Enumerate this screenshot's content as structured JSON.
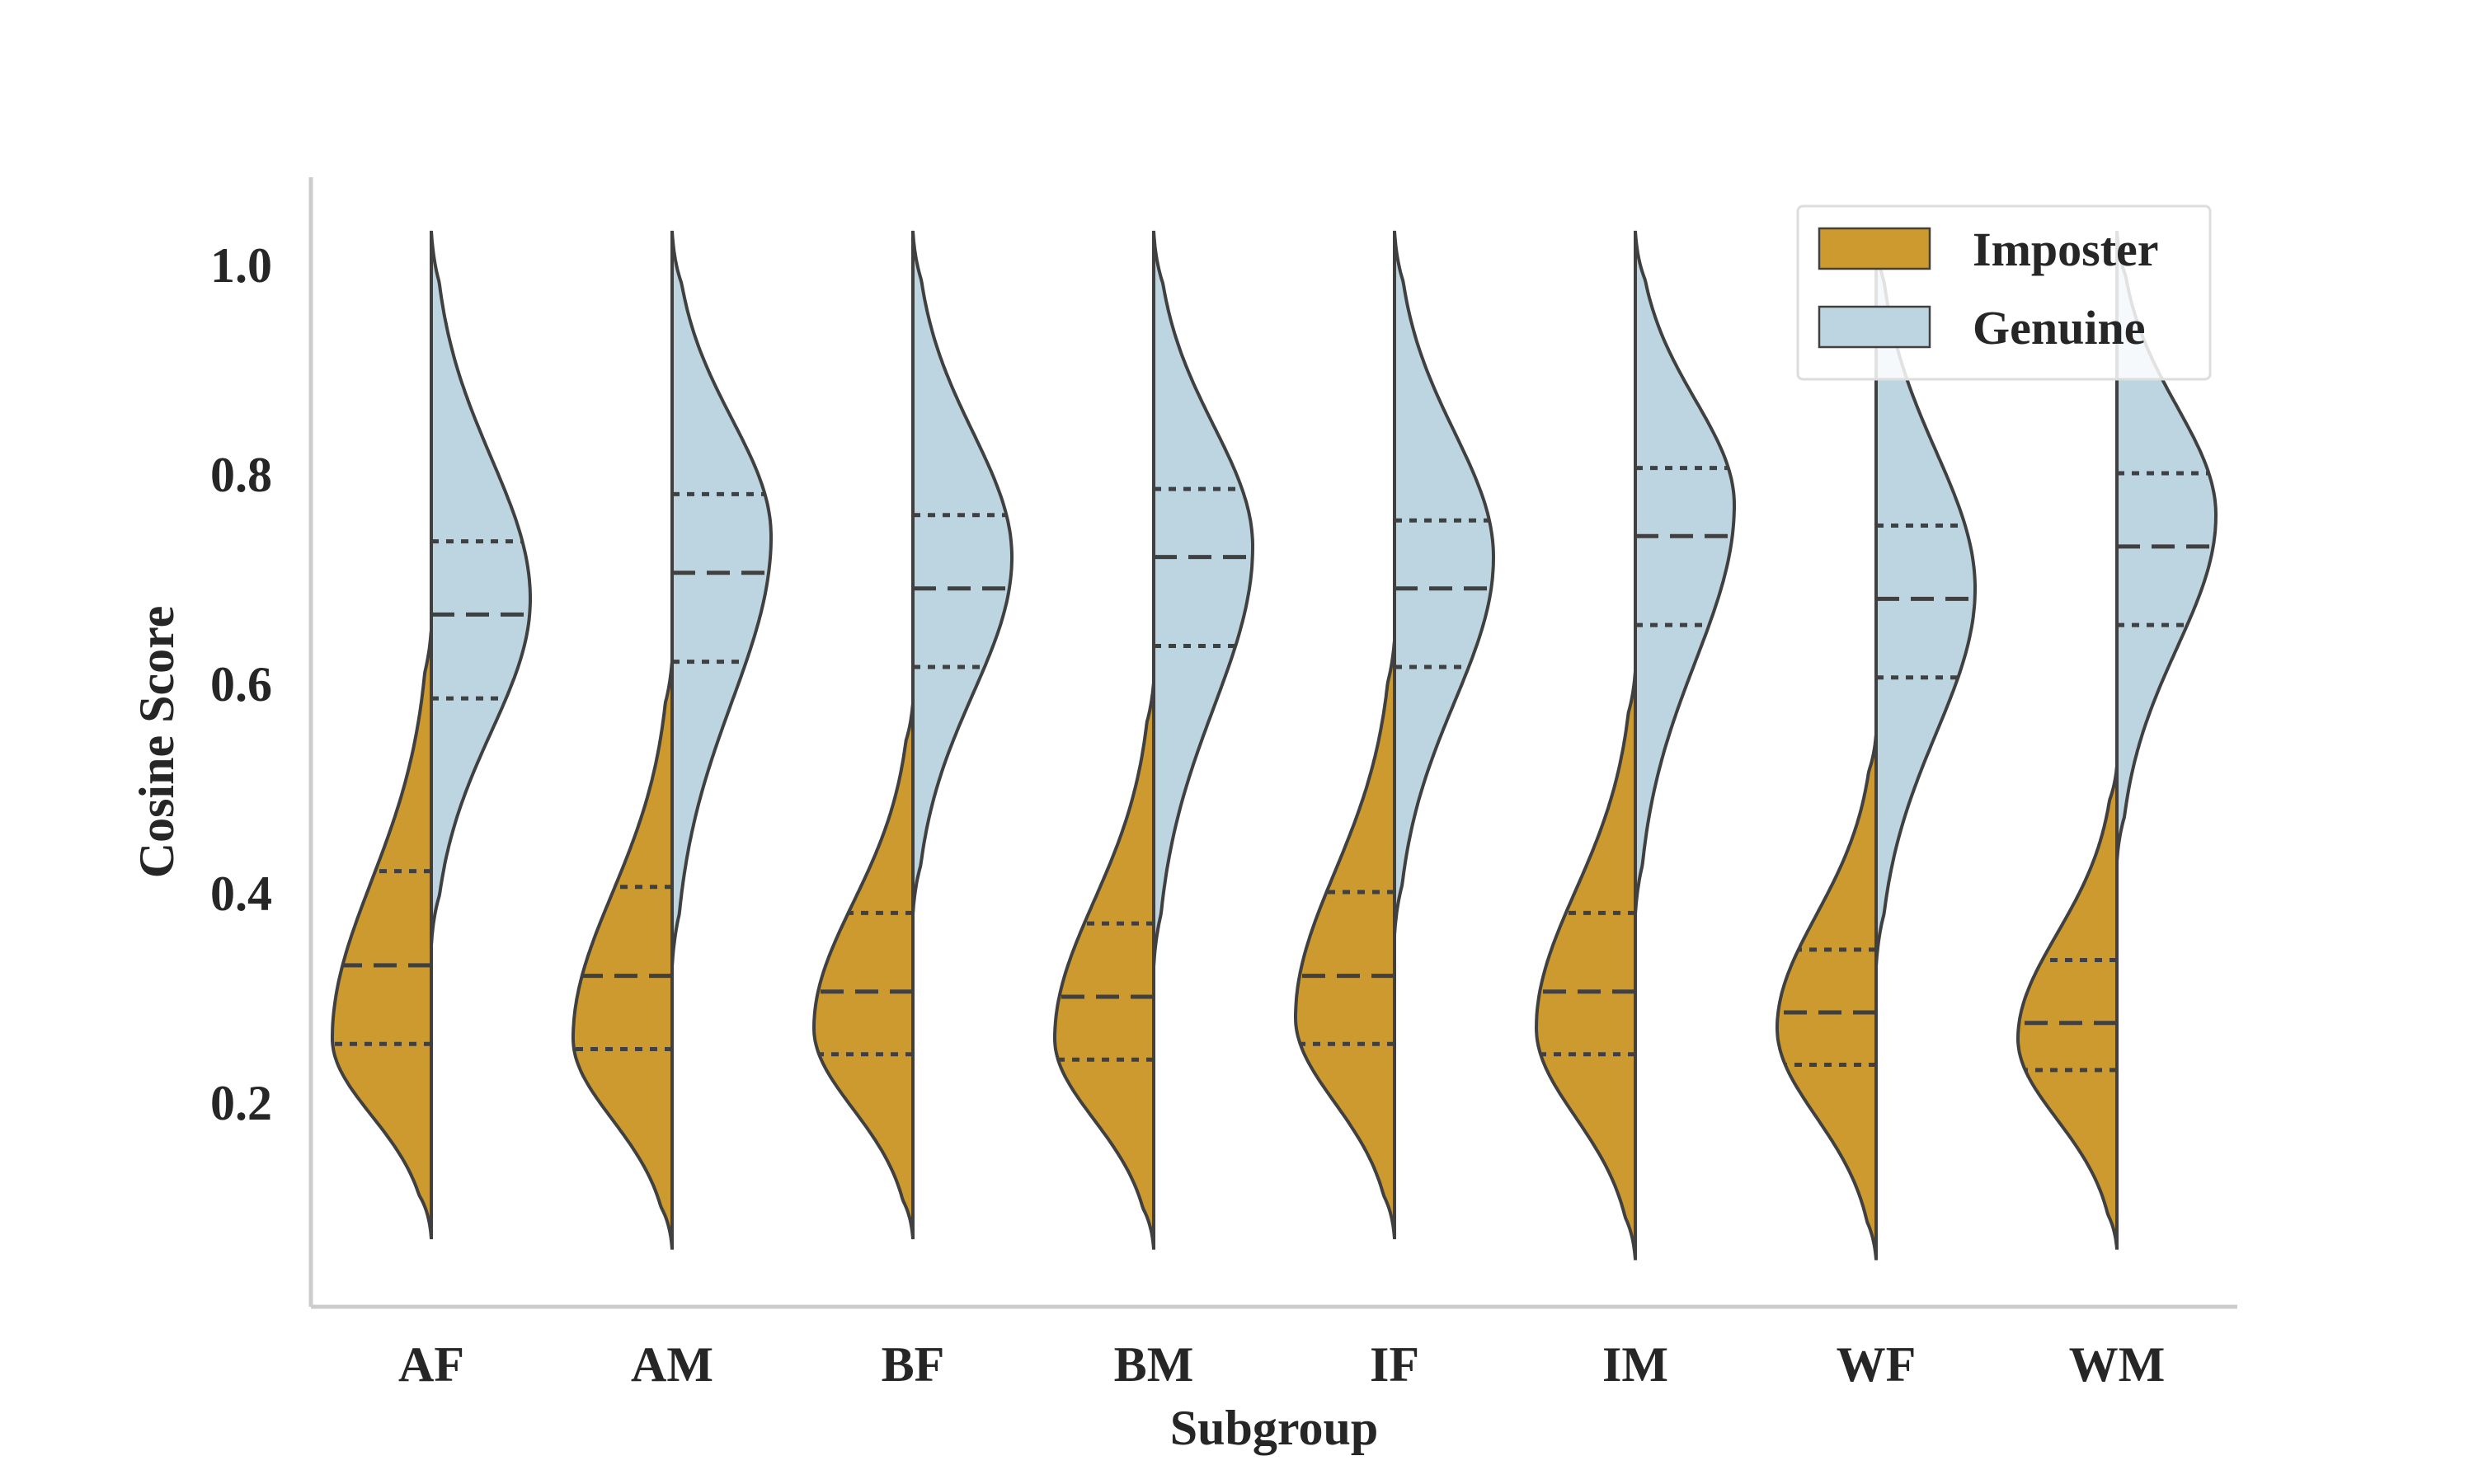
{
  "chart_data": {
    "type": "violin",
    "split": true,
    "xlabel": "Subgroup",
    "ylabel": "Cosine Score",
    "ylim": [
      0.0,
      1.1
    ],
    "yticks": [
      "0.2",
      "0.4",
      "0.6",
      "0.8",
      "1.0"
    ],
    "yticks_values": [
      0.2,
      0.4,
      0.6,
      0.8,
      1.0
    ],
    "categories": [
      "AF",
      "AM",
      "BF",
      "BM",
      "IF",
      "IM",
      "WF",
      "WM"
    ],
    "inner": "quartile",
    "grid": false,
    "legend_position": "top-right",
    "series": [
      {
        "name": "Imposter",
        "side": "left",
        "color": "#CC9A2F",
        "min": [
          0.07,
          0.06,
          0.07,
          0.06,
          0.07,
          0.05,
          0.05,
          0.06
        ],
        "max": [
          0.65,
          0.62,
          0.58,
          0.6,
          0.64,
          0.61,
          0.55,
          0.52
        ],
        "q1": [
          0.255,
          0.25,
          0.245,
          0.24,
          0.255,
          0.245,
          0.235,
          0.23
        ],
        "median": [
          0.33,
          0.32,
          0.305,
          0.3,
          0.32,
          0.305,
          0.285,
          0.275
        ],
        "q3": [
          0.42,
          0.405,
          0.38,
          0.37,
          0.4,
          0.38,
          0.345,
          0.335
        ],
        "mode": [
          0.26,
          0.26,
          0.27,
          0.26,
          0.28,
          0.27,
          0.27,
          0.26
        ]
      },
      {
        "name": "Genuine",
        "side": "right",
        "color": "#BDD5E0",
        "min": [
          0.35,
          0.33,
          0.38,
          0.33,
          0.36,
          0.38,
          0.33,
          0.43
        ],
        "max": [
          1.03,
          1.03,
          1.03,
          1.03,
          1.03,
          1.03,
          1.03,
          1.03
        ],
        "q1": [
          0.585,
          0.62,
          0.615,
          0.635,
          0.615,
          0.655,
          0.605,
          0.655
        ],
        "median": [
          0.665,
          0.705,
          0.69,
          0.72,
          0.69,
          0.74,
          0.68,
          0.73
        ],
        "q3": [
          0.735,
          0.78,
          0.76,
          0.785,
          0.755,
          0.805,
          0.75,
          0.8
        ],
        "mode": [
          0.68,
          0.74,
          0.72,
          0.73,
          0.72,
          0.77,
          0.69,
          0.76
        ]
      }
    ]
  }
}
